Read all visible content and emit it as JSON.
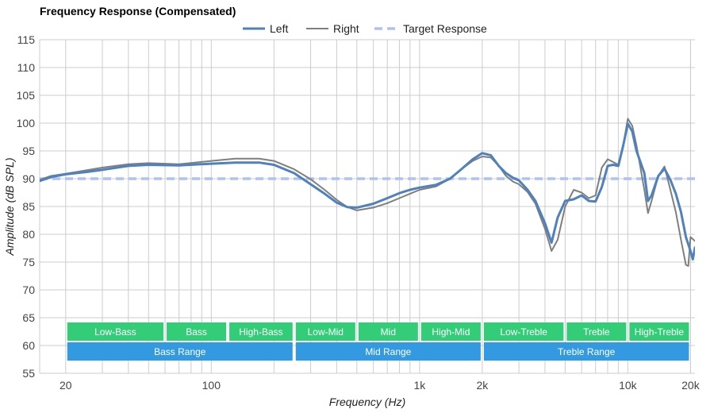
{
  "chart_data": {
    "type": "line",
    "title": "Frequency Response (Compensated)",
    "xlabel": "Frequency (Hz)",
    "ylabel": "Amplitude (dB SPL)",
    "x_scale": "log",
    "xlim": [
      15,
      21000
    ],
    "ylim": [
      55,
      115
    ],
    "grid": true,
    "legend_position": "top-center",
    "x_tick_labels": [
      {
        "value": 20,
        "label": "20"
      },
      {
        "value": 100,
        "label": "100"
      },
      {
        "value": 1000,
        "label": "1k"
      },
      {
        "value": 2000,
        "label": "2k"
      },
      {
        "value": 10000,
        "label": "10k"
      },
      {
        "value": 20000,
        "label": "20k"
      }
    ],
    "y_ticks": [
      55,
      60,
      65,
      70,
      75,
      80,
      85,
      90,
      95,
      100,
      105,
      110,
      115
    ],
    "series": [
      {
        "name": "Left",
        "color": "#4f81bd",
        "style": "solid",
        "points": [
          [
            15,
            89.6
          ],
          [
            17,
            90.3
          ],
          [
            20,
            90.8
          ],
          [
            25,
            91.2
          ],
          [
            30,
            91.6
          ],
          [
            40,
            92.3
          ],
          [
            50,
            92.5
          ],
          [
            70,
            92.4
          ],
          [
            100,
            92.7
          ],
          [
            130,
            92.9
          ],
          [
            170,
            92.9
          ],
          [
            200,
            92.5
          ],
          [
            250,
            91.0
          ],
          [
            300,
            89.0
          ],
          [
            350,
            87.3
          ],
          [
            400,
            85.7
          ],
          [
            450,
            84.9
          ],
          [
            500,
            84.8
          ],
          [
            600,
            85.5
          ],
          [
            700,
            86.5
          ],
          [
            800,
            87.4
          ],
          [
            900,
            88.0
          ],
          [
            1000,
            88.4
          ],
          [
            1200,
            88.9
          ],
          [
            1400,
            90.0
          ],
          [
            1600,
            91.8
          ],
          [
            1800,
            93.5
          ],
          [
            2000,
            94.6
          ],
          [
            2200,
            94.2
          ],
          [
            2400,
            92.3
          ],
          [
            2600,
            91.0
          ],
          [
            2800,
            90.2
          ],
          [
            3000,
            89.7
          ],
          [
            3300,
            88.0
          ],
          [
            3600,
            86.0
          ],
          [
            4000,
            82.0
          ],
          [
            4300,
            78.5
          ],
          [
            4600,
            83.0
          ],
          [
            5000,
            86.0
          ],
          [
            5500,
            86.3
          ],
          [
            6000,
            87.0
          ],
          [
            6500,
            86.0
          ],
          [
            7000,
            85.9
          ],
          [
            7500,
            88.5
          ],
          [
            8000,
            92.3
          ],
          [
            8500,
            92.5
          ],
          [
            9000,
            92.3
          ],
          [
            9500,
            96.0
          ],
          [
            10000,
            99.9
          ],
          [
            10500,
            98.5
          ],
          [
            11000,
            95.0
          ],
          [
            12000,
            91.0
          ],
          [
            12500,
            86.0
          ],
          [
            13000,
            87.0
          ],
          [
            14000,
            90.5
          ],
          [
            15000,
            91.8
          ],
          [
            16000,
            89.8
          ],
          [
            17000,
            87.3
          ],
          [
            18000,
            84.0
          ],
          [
            19000,
            79.5
          ],
          [
            20000,
            77.0
          ],
          [
            20500,
            75.5
          ],
          [
            21000,
            77.6
          ]
        ]
      },
      {
        "name": "Right",
        "color": "#7f7f7f",
        "style": "solid",
        "points": [
          [
            15,
            89.8
          ],
          [
            17,
            90.5
          ],
          [
            20,
            90.9
          ],
          [
            25,
            91.5
          ],
          [
            30,
            92.0
          ],
          [
            40,
            92.6
          ],
          [
            50,
            92.8
          ],
          [
            70,
            92.6
          ],
          [
            100,
            93.2
          ],
          [
            130,
            93.6
          ],
          [
            170,
            93.6
          ],
          [
            200,
            93.2
          ],
          [
            250,
            91.7
          ],
          [
            300,
            89.9
          ],
          [
            350,
            88.0
          ],
          [
            400,
            86.2
          ],
          [
            450,
            84.9
          ],
          [
            500,
            84.3
          ],
          [
            600,
            84.8
          ],
          [
            700,
            85.6
          ],
          [
            800,
            86.5
          ],
          [
            900,
            87.3
          ],
          [
            1000,
            88.0
          ],
          [
            1200,
            88.6
          ],
          [
            1400,
            90.0
          ],
          [
            1600,
            91.8
          ],
          [
            1800,
            93.2
          ],
          [
            2000,
            94.0
          ],
          [
            2200,
            93.8
          ],
          [
            2400,
            92.3
          ],
          [
            2600,
            90.5
          ],
          [
            2800,
            89.5
          ],
          [
            3000,
            89.0
          ],
          [
            3300,
            87.6
          ],
          [
            3600,
            85.5
          ],
          [
            4000,
            81.0
          ],
          [
            4300,
            77.0
          ],
          [
            4600,
            79.0
          ],
          [
            5000,
            85.0
          ],
          [
            5500,
            88.0
          ],
          [
            6000,
            87.5
          ],
          [
            6500,
            86.5
          ],
          [
            7000,
            87.0
          ],
          [
            7500,
            92.0
          ],
          [
            8000,
            93.5
          ],
          [
            8500,
            93.0
          ],
          [
            9000,
            92.5
          ],
          [
            9500,
            96.0
          ],
          [
            10000,
            100.8
          ],
          [
            10500,
            99.5
          ],
          [
            11000,
            96.0
          ],
          [
            12000,
            88.0
          ],
          [
            12500,
            83.8
          ],
          [
            13000,
            86.0
          ],
          [
            14000,
            90.5
          ],
          [
            15000,
            92.2
          ],
          [
            16000,
            88.0
          ],
          [
            17000,
            84.0
          ],
          [
            18000,
            79.0
          ],
          [
            19000,
            74.5
          ],
          [
            19500,
            74.3
          ],
          [
            20000,
            79.5
          ],
          [
            21000,
            78.8
          ]
        ]
      },
      {
        "name": "Target Response",
        "color": "#aec2f5",
        "style": "dashed",
        "points": [
          [
            15,
            90
          ],
          [
            21000,
            90
          ]
        ]
      }
    ],
    "bands": [
      {
        "label": "Low-Bass",
        "from": 20,
        "to": 60,
        "row": 1,
        "color": "#33cc77"
      },
      {
        "label": "Bass",
        "from": 60,
        "to": 120,
        "row": 1,
        "color": "#33cc77"
      },
      {
        "label": "High-Bass",
        "from": 120,
        "to": 250,
        "row": 1,
        "color": "#33cc77"
      },
      {
        "label": "Low-Mid",
        "from": 250,
        "to": 500,
        "row": 1,
        "color": "#33cc77"
      },
      {
        "label": "Mid",
        "from": 500,
        "to": 1000,
        "row": 1,
        "color": "#33cc77"
      },
      {
        "label": "High-Mid",
        "from": 1000,
        "to": 2000,
        "row": 1,
        "color": "#33cc77"
      },
      {
        "label": "Low-Treble",
        "from": 2000,
        "to": 5000,
        "row": 1,
        "color": "#33cc77"
      },
      {
        "label": "Treble",
        "from": 5000,
        "to": 10000,
        "row": 1,
        "color": "#33cc77"
      },
      {
        "label": "High-Treble",
        "from": 10000,
        "to": 20000,
        "row": 1,
        "color": "#33cc77"
      },
      {
        "label": "Bass Range",
        "from": 20,
        "to": 250,
        "row": 2,
        "color": "#3399e0"
      },
      {
        "label": "Mid Range",
        "from": 250,
        "to": 2000,
        "row": 2,
        "color": "#3399e0"
      },
      {
        "label": "Treble Range",
        "from": 2000,
        "to": 20000,
        "row": 2,
        "color": "#3399e0"
      }
    ]
  }
}
